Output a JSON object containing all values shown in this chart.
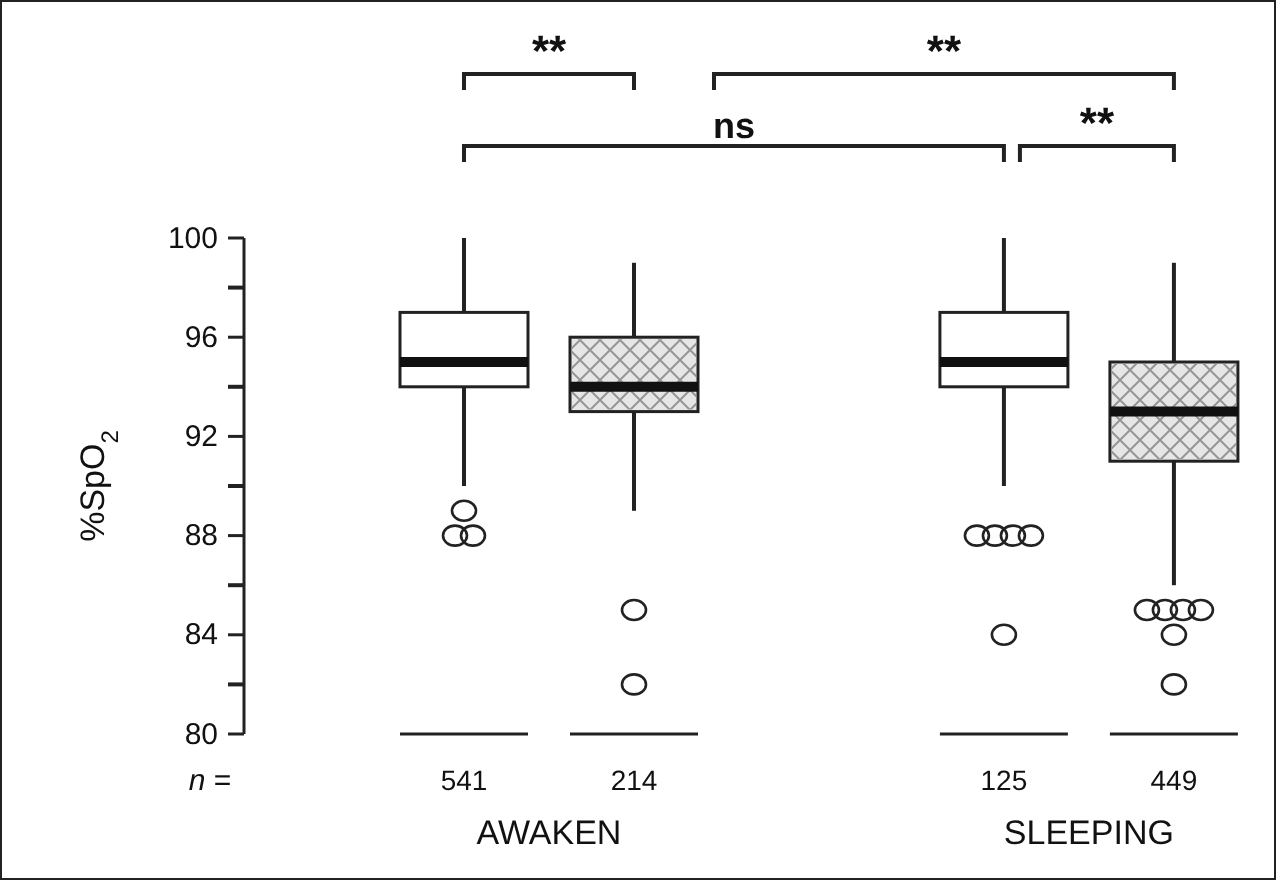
{
  "chart_data": {
    "type": "box",
    "ylabel": "%SpO$_{2}$",
    "categories": [
      "541",
      "214",
      "125",
      "449"
    ],
    "colors": [
      "#ffffff",
      "#e6e6e6",
      "#ffffff",
      "#e6e6e6"
    ],
    "boxes": [
      {
        "low": 90,
        "q1": 94,
        "median": 95,
        "q3": 97,
        "high": 100,
        "outliers": [
          89,
          88,
          88
        ]
      },
      {
        "low": 89,
        "q1": 93,
        "median": 94,
        "q3": 96,
        "high": 99,
        "outliers": [
          85,
          82
        ]
      },
      {
        "low": 90,
        "q1": 94,
        "median": 95,
        "q3": 97,
        "high": 100,
        "outliers": [
          88,
          88,
          88,
          88,
          84
        ]
      },
      {
        "low": 86,
        "q1": 91,
        "median": 93,
        "q3": 95,
        "high": 99,
        "outliers": [
          85,
          85,
          85,
          85,
          84,
          82
        ]
      }
    ],
    "ylim": [
      80,
      100
    ],
    "yticks": [
      80,
      84,
      88,
      92,
      96,
      100
    ],
    "grid": false,
    "annotations": [
      "n =",
      "AWAKEN",
      "SLEEPING",
      "**",
      "**",
      "ns",
      "**"
    ]
  }
}
